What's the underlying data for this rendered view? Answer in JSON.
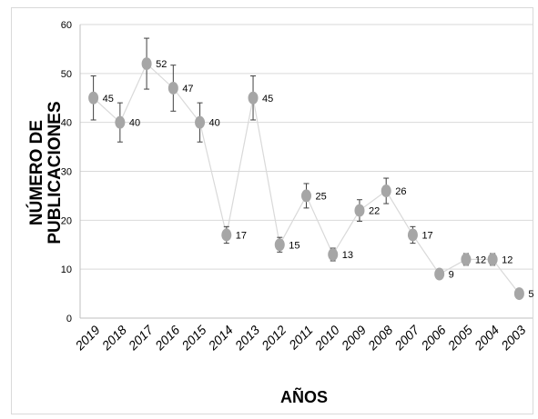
{
  "chart_data": {
    "type": "line",
    "title": "",
    "xlabel": "AÑOS",
    "ylabel": [
      "NÚMERO DE",
      "PUBLICACIONES"
    ],
    "categories": [
      "2019",
      "2018",
      "2017",
      "2016",
      "2015",
      "2014",
      "2013",
      "2012",
      "2011",
      "2010",
      "2009",
      "2008",
      "2007",
      "2006",
      "2005",
      "2004",
      "2003"
    ],
    "series": [
      {
        "values": [
          45,
          40,
          52,
          47,
          40,
          17,
          45,
          15,
          25,
          13,
          22,
          26,
          17,
          9,
          12,
          12,
          5
        ],
        "error": [
          4.5,
          4,
          5.2,
          4.7,
          4,
          1.7,
          4.5,
          1.5,
          2.5,
          1.3,
          2.2,
          2.6,
          1.7,
          0.9,
          1.2,
          1.2,
          0.5
        ],
        "marker_color": "#a6a6a6",
        "line_color": "#d9d9d9"
      }
    ],
    "ylim": [
      0,
      60
    ],
    "yticks": [
      0,
      10,
      20,
      30,
      40,
      50,
      60
    ],
    "grid": true,
    "legend": "none",
    "data_labels": true
  }
}
